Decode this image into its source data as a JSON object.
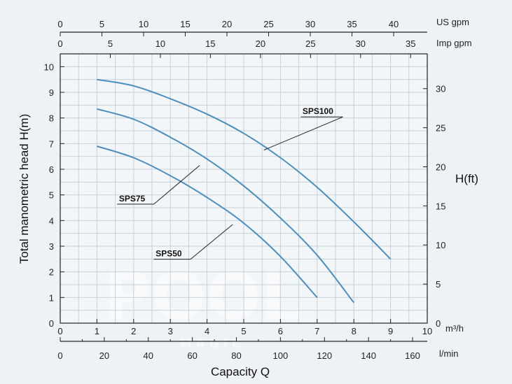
{
  "chart_data": {
    "type": "line",
    "xlabel": "Capacity Q",
    "ylabel": "Total manometric head H(m)",
    "y2label": "H(ft)",
    "xlim": [
      0,
      10
    ],
    "ylim": [
      0,
      10.5
    ],
    "y2lim": [
      0,
      34.45
    ],
    "grid": true,
    "x_m3h": {
      "unit": "m³/h",
      "ticks": [
        "0",
        "1",
        "2",
        "3",
        "4",
        "5",
        "6",
        "7",
        "8",
        "9",
        "10"
      ]
    },
    "x_lmin": {
      "unit": "l/min",
      "max": 166.67,
      "ticks": [
        "0",
        "20",
        "40",
        "60",
        "80",
        "100",
        "120",
        "140",
        "160"
      ]
    },
    "x_usgpm": {
      "unit": "US gpm",
      "max": 44.03,
      "ticks": [
        "0",
        "5",
        "10",
        "15",
        "20",
        "25",
        "30",
        "35",
        "40"
      ]
    },
    "x_impgpm": {
      "unit": "Imp gpm",
      "max": 36.66,
      "ticks": [
        "0",
        "5",
        "10",
        "15",
        "20",
        "25",
        "30",
        "35"
      ]
    },
    "y_m_ticks": [
      "0",
      "1",
      "2",
      "3",
      "4",
      "5",
      "6",
      "7",
      "8",
      "9",
      "10"
    ],
    "y_ft_ticks": [
      "0",
      "5",
      "10",
      "15",
      "20",
      "25",
      "30"
    ],
    "series": [
      {
        "name": "SPS100",
        "color": "#4a8ec0",
        "x": [
          1,
          2,
          3,
          4,
          5,
          6,
          7,
          8,
          9
        ],
        "y": [
          9.5,
          9.25,
          8.75,
          8.15,
          7.4,
          6.45,
          5.3,
          3.95,
          2.5
        ]
      },
      {
        "name": "SPS75",
        "color": "#4a8ec0",
        "x": [
          1,
          2,
          3,
          4,
          5,
          6,
          7,
          8
        ],
        "y": [
          8.35,
          7.95,
          7.25,
          6.4,
          5.35,
          4.1,
          2.65,
          0.8
        ]
      },
      {
        "name": "SPS50",
        "color": "#4a8ec0",
        "x": [
          1,
          2,
          3,
          4,
          5,
          6,
          7
        ],
        "y": [
          6.9,
          6.45,
          5.75,
          4.9,
          3.9,
          2.6,
          1.0
        ]
      }
    ]
  },
  "watermark": {
    "line1": "POOL",
    "line2": "M A G I C"
  }
}
